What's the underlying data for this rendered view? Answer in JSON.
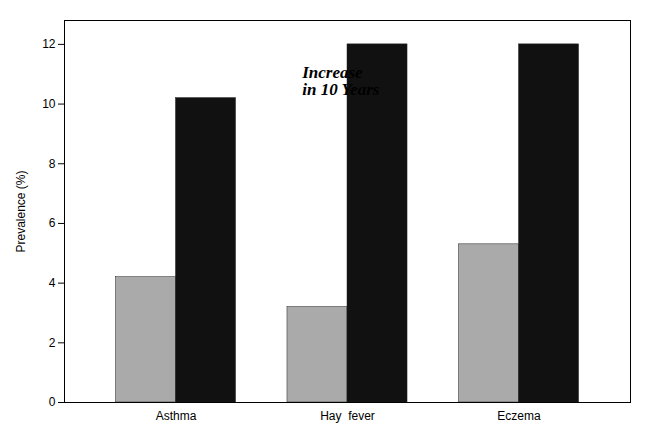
{
  "chart_data": {
    "type": "bar",
    "categories": [
      "Asthma",
      "Hay  fever",
      "Eczema"
    ],
    "series": [
      {
        "color": "#aaaaaa",
        "values": [
          4.2,
          3.2,
          5.3
        ]
      },
      {
        "color": "#111111",
        "values": [
          10.2,
          12.0,
          12.0
        ]
      }
    ],
    "ylabel": "Prevalence (%)",
    "ylim": [
      0,
      12.8
    ],
    "yticks": [
      0,
      2,
      4,
      6,
      8,
      10,
      12
    ],
    "annotation": "Increase\nin 10 Years"
  }
}
